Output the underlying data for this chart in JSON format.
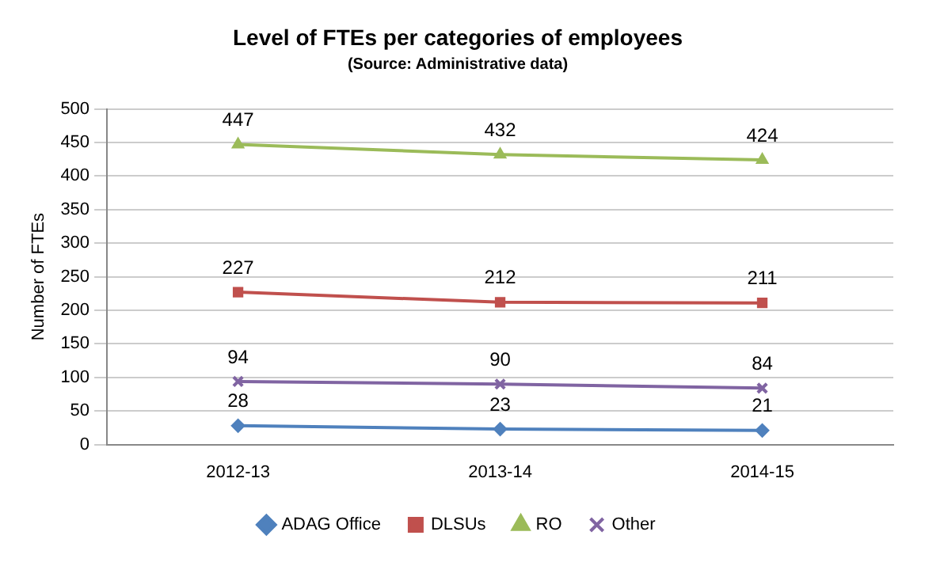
{
  "chart_data": {
    "type": "line",
    "title": "Level of FTEs per categories of employees",
    "subtitle": "(Source: Administrative data)",
    "ylabel": "Number of FTEs",
    "categories": [
      "2012-13",
      "2013-14",
      "2014-15"
    ],
    "series": [
      {
        "name": "ADAG Office",
        "color": "#4f81bd",
        "marker": "diamond",
        "values": [
          28,
          23,
          21
        ]
      },
      {
        "name": "DLSUs",
        "color": "#c0504d",
        "marker": "square",
        "values": [
          227,
          212,
          211
        ]
      },
      {
        "name": "RO",
        "color": "#9bbb59",
        "marker": "triangle",
        "values": [
          447,
          432,
          424
        ]
      },
      {
        "name": "Other",
        "color": "#8064a2",
        "marker": "cross",
        "values": [
          94,
          90,
          84
        ]
      }
    ],
    "ylim": [
      0,
      500
    ],
    "yticks": [
      0,
      50,
      100,
      150,
      200,
      250,
      300,
      350,
      400,
      450,
      500
    ],
    "grid": "y",
    "legend": "bottom",
    "data_labels": true,
    "line_style": "solid"
  }
}
